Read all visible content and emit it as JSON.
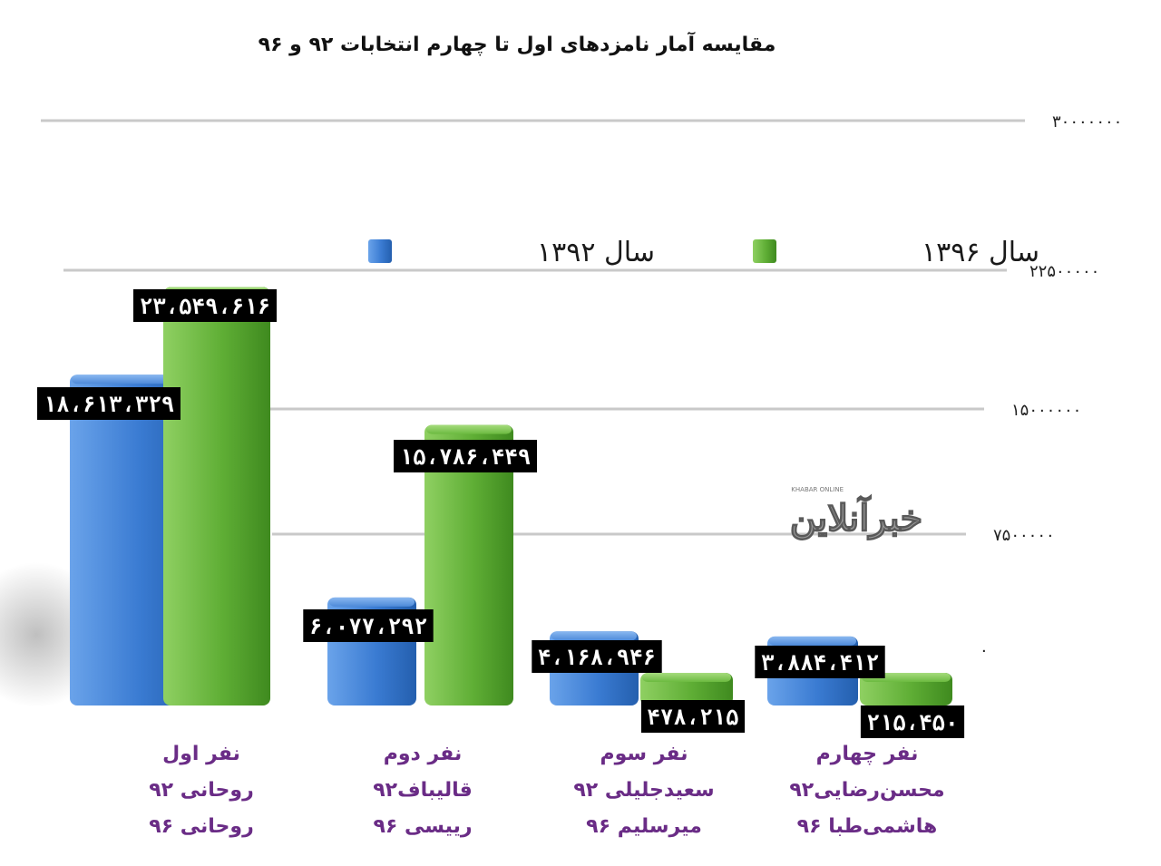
{
  "chart_data": {
    "type": "bar",
    "title": "مقایسه آمار نامزدهای اول تا چهارم انتخابات ۹۲ و ۹۶",
    "y_ticks": [
      {
        "value": 0,
        "label": "۰"
      },
      {
        "value": 7500000,
        "label": "۷۵۰۰۰۰۰"
      },
      {
        "value": 15000000,
        "label": "۱۵۰۰۰۰۰۰"
      },
      {
        "value": 22500000,
        "label": "۲۲۵۰۰۰۰۰"
      },
      {
        "value": 30000000,
        "label": "۳۰۰۰۰۰۰۰"
      }
    ],
    "ylim": [
      0,
      30000000
    ],
    "grid": true,
    "legend_position": "top",
    "categories": [
      {
        "lines": [
          "نفر اول",
          "روحانی ۹۲",
          "روحانی ۹۶"
        ]
      },
      {
        "lines": [
          "نفر دوم",
          "قالیباف۹۲",
          "ریيسی ۹۶"
        ]
      },
      {
        "lines": [
          "نفر سوم",
          "سعیدجلیلی ۹۲",
          "میرسلیم ۹۶"
        ]
      },
      {
        "lines": [
          "نفر چهارم",
          "محسن‌رضایی۹۲",
          "هاشمی‌طبا ۹۶"
        ]
      }
    ],
    "series": [
      {
        "name": "سال ۱۳۹۲",
        "color": "#3d7fd4",
        "values": [
          18613329,
          6077292,
          4168946,
          3884412
        ],
        "labels": [
          "۱۸،۶۱۳،۳۲۹",
          "۶،۰۷۷،۲۹۲",
          "۴،۱۶۸،۹۴۶",
          "۳،۸۸۴،۴۱۲"
        ]
      },
      {
        "name": "سال ۱۳۹۶",
        "color": "#5fae35",
        "values": [
          23549616,
          15786449,
          478215,
          215450
        ],
        "labels": [
          "۲۳،۵۴۹،۶۱۶",
          "۱۵،۷۸۶،۴۴۹",
          "۴۷۸،۲۱۵",
          "۲۱۵،۴۵۰"
        ]
      }
    ]
  },
  "watermark": {
    "text": "خبرآنلاین",
    "small_text": "KHABAR ONLINE"
  }
}
